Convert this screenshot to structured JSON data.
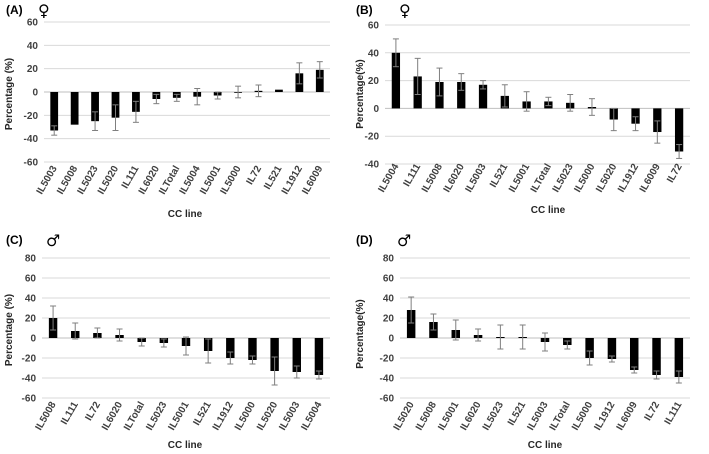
{
  "chart_data": [
    {
      "type": "bar",
      "panel_label": "(A)",
      "sex_symbol": "♀",
      "xlabel": "CC line",
      "ylabel": "Percentage (%)",
      "ylim": [
        -60,
        60
      ],
      "yticks": [
        60,
        40,
        20,
        0,
        -20,
        -40,
        -60
      ],
      "categories": [
        "IL5003",
        "IL5008",
        "IL5023",
        "IL5020",
        "IL111",
        "IL6020",
        "ILTotal",
        "IL5004",
        "IL5001",
        "IL5000",
        "IL72",
        "IL521",
        "IL1912",
        "IL6009"
      ],
      "values": [
        -33,
        -28,
        -25,
        -22,
        -17,
        -6,
        -5,
        -4,
        -3,
        0,
        1,
        2,
        16,
        19
      ],
      "errors": [
        4,
        0,
        8,
        11,
        9,
        4,
        3,
        7,
        3,
        5,
        5,
        0,
        9,
        7
      ]
    },
    {
      "type": "bar",
      "panel_label": "(B)",
      "sex_symbol": "♀",
      "xlabel": "CC line",
      "ylabel": "Percentage(%)",
      "ylim": [
        -40,
        60
      ],
      "yticks": [
        60,
        40,
        20,
        0,
        -20,
        -40
      ],
      "categories": [
        "IL5004",
        "IL111",
        "IL5008",
        "IL6020",
        "IL5003",
        "IL521",
        "IL5001",
        "ILTotal",
        "IL5023",
        "IL5000",
        "IL5020",
        "IL1912",
        "IL6009",
        "IL72"
      ],
      "values": [
        40,
        23,
        19,
        19,
        17,
        9,
        5,
        5,
        4,
        1,
        -8,
        -11,
        -17,
        -31
      ],
      "errors": [
        10,
        13,
        10,
        6,
        3,
        8,
        7,
        3,
        6,
        6,
        8,
        5,
        8,
        5
      ]
    },
    {
      "type": "bar",
      "panel_label": "(C)",
      "sex_symbol": "♂",
      "xlabel": "CC line",
      "ylabel": "Percentage (%)",
      "ylim": [
        -60,
        80
      ],
      "yticks": [
        80,
        60,
        40,
        20,
        0,
        -20,
        -40,
        -60
      ],
      "categories": [
        "IL5008",
        "IL111",
        "IL72",
        "IL6020",
        "ILTotal",
        "IL5023",
        "IL5001",
        "IL521",
        "IL1912",
        "IL5000",
        "IL5020",
        "IL5003",
        "IL5004"
      ],
      "values": [
        20,
        7,
        5,
        3,
        -4,
        -5,
        -8,
        -13,
        -20,
        -22,
        -33,
        -34,
        -37
      ],
      "errors": [
        12,
        8,
        5,
        6,
        4,
        4,
        9,
        12,
        6,
        4,
        14,
        6,
        4
      ]
    },
    {
      "type": "bar",
      "panel_label": "(D)",
      "sex_symbol": "♂",
      "xlabel": "CC line",
      "ylabel": "Percentage(%)",
      "ylim": [
        -60,
        80
      ],
      "yticks": [
        80,
        60,
        40,
        20,
        0,
        -20,
        -40,
        -60
      ],
      "categories": [
        "IL5020",
        "IL5008",
        "IL5001",
        "IL6020",
        "IL5023",
        "IL521",
        "IL5003",
        "ILTotal",
        "IL5000",
        "IL1912",
        "IL6009",
        "IL72",
        "IL111"
      ],
      "values": [
        28,
        16,
        8,
        3,
        1,
        1,
        -4,
        -7,
        -20,
        -21,
        -32,
        -37,
        -39
      ],
      "errors": [
        13,
        8,
        10,
        6,
        12,
        12,
        9,
        4,
        7,
        3,
        3,
        4,
        6
      ]
    }
  ]
}
